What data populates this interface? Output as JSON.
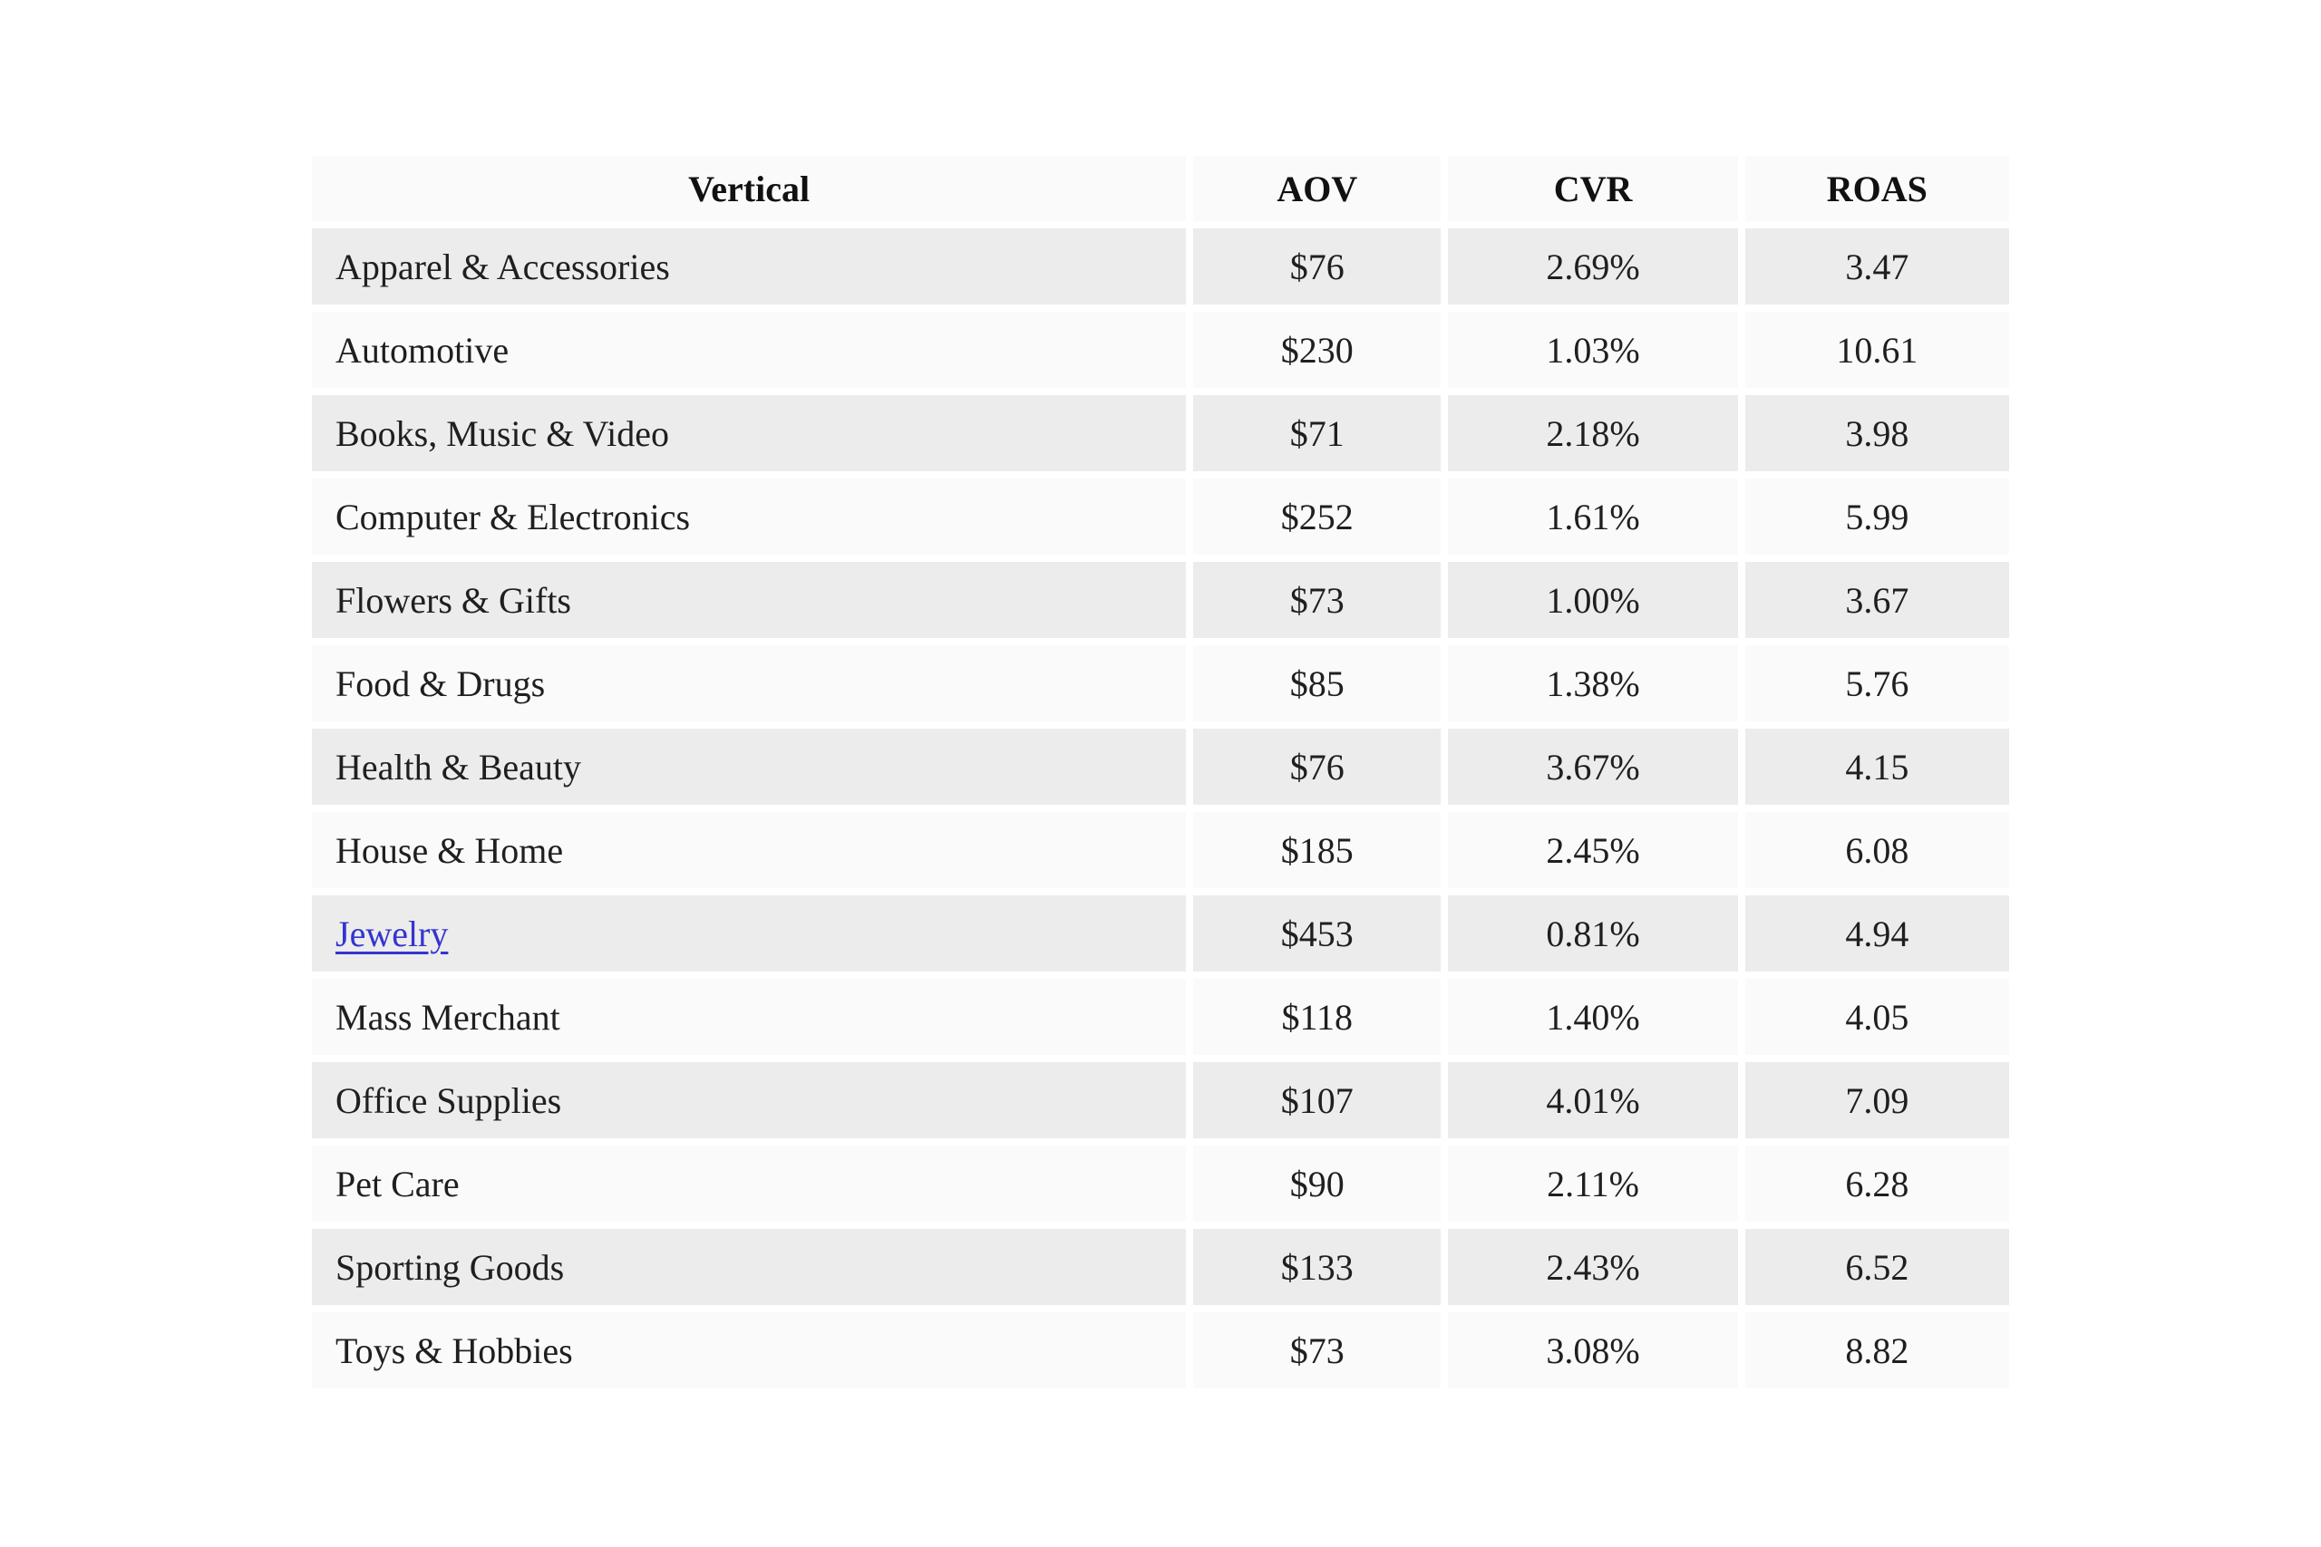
{
  "chart_data": {
    "type": "table",
    "columns": [
      "Vertical",
      "AOV",
      "CVR",
      "ROAS"
    ],
    "rows": [
      [
        "Apparel & Accessories",
        "$76",
        "2.69%",
        "3.47"
      ],
      [
        "Automotive",
        "$230",
        "1.03%",
        "10.61"
      ],
      [
        "Books, Music & Video",
        "$71",
        "2.18%",
        "3.98"
      ],
      [
        "Computer & Electronics",
        "$252",
        "1.61%",
        "5.99"
      ],
      [
        "Flowers & Gifts",
        "$73",
        "1.00%",
        "3.67"
      ],
      [
        "Food & Drugs",
        "$85",
        "1.38%",
        "5.76"
      ],
      [
        "Health & Beauty",
        "$76",
        "3.67%",
        "4.15"
      ],
      [
        "House & Home",
        "$185",
        "2.45%",
        "6.08"
      ],
      [
        "Jewelry",
        "$453",
        "0.81%",
        "4.94"
      ],
      [
        "Mass Merchant",
        "$118",
        "1.40%",
        "4.05"
      ],
      [
        "Office Supplies",
        "$107",
        "4.01%",
        "7.09"
      ],
      [
        "Pet Care",
        "$90",
        "2.11%",
        "6.28"
      ],
      [
        "Sporting Goods",
        "$133",
        "2.43%",
        "6.52"
      ],
      [
        "Toys & Hobbies",
        "$73",
        "3.08%",
        "8.82"
      ]
    ]
  },
  "table": {
    "columns": [
      {
        "label": "Vertical"
      },
      {
        "label": "AOV"
      },
      {
        "label": "CVR"
      },
      {
        "label": "ROAS"
      }
    ],
    "rows": [
      {
        "vertical": "Apparel & Accessories",
        "aov": "$76",
        "cvr": "2.69%",
        "roas": "3.47",
        "is_link": false
      },
      {
        "vertical": "Automotive",
        "aov": "$230",
        "cvr": "1.03%",
        "roas": "10.61",
        "is_link": false
      },
      {
        "vertical": "Books, Music & Video",
        "aov": "$71",
        "cvr": "2.18%",
        "roas": "3.98",
        "is_link": false
      },
      {
        "vertical": "Computer & Electronics",
        "aov": "$252",
        "cvr": "1.61%",
        "roas": "5.99",
        "is_link": false
      },
      {
        "vertical": "Flowers & Gifts",
        "aov": "$73",
        "cvr": "1.00%",
        "roas": "3.67",
        "is_link": false
      },
      {
        "vertical": "Food & Drugs",
        "aov": "$85",
        "cvr": "1.38%",
        "roas": "5.76",
        "is_link": false
      },
      {
        "vertical": "Health & Beauty",
        "aov": "$76",
        "cvr": "3.67%",
        "roas": "4.15",
        "is_link": false
      },
      {
        "vertical": "House & Home",
        "aov": "$185",
        "cvr": "2.45%",
        "roas": "6.08",
        "is_link": false
      },
      {
        "vertical": "Jewelry",
        "aov": "$453",
        "cvr": "0.81%",
        "roas": "4.94",
        "is_link": true
      },
      {
        "vertical": "Mass Merchant",
        "aov": "$118",
        "cvr": "1.40%",
        "roas": "4.05",
        "is_link": false
      },
      {
        "vertical": "Office Supplies",
        "aov": "$107",
        "cvr": "4.01%",
        "roas": "7.09",
        "is_link": false
      },
      {
        "vertical": "Pet Care",
        "aov": "$90",
        "cvr": "2.11%",
        "roas": "6.28",
        "is_link": false
      },
      {
        "vertical": "Sporting Goods",
        "aov": "$133",
        "cvr": "2.43%",
        "roas": "6.52",
        "is_link": false
      },
      {
        "vertical": "Toys & Hobbies",
        "aov": "$73",
        "cvr": "3.08%",
        "roas": "8.82",
        "is_link": false
      }
    ]
  },
  "colors": {
    "page_background": "#ffffff",
    "header_background": "#fafafa",
    "row_odd_background": "#ececec",
    "row_even_background": "#fafafa",
    "text": "#1f1f1f",
    "link": "#3534d0"
  }
}
